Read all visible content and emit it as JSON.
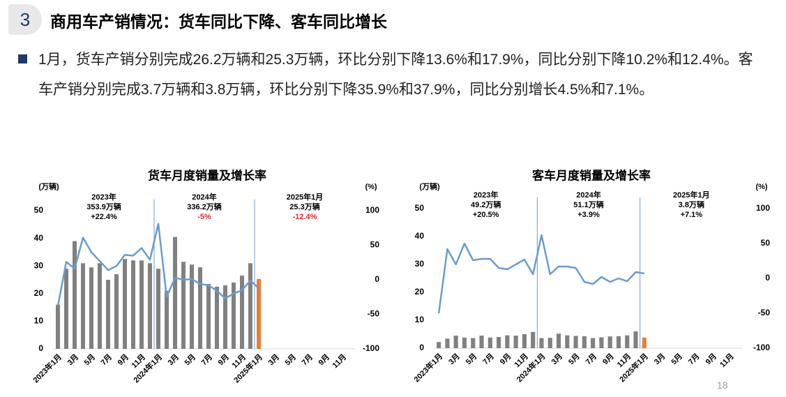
{
  "header": {
    "number": "3",
    "title": "商用车产销情况：货车同比下降、客车同比增长"
  },
  "bullet": "1月，货车产销分别完成26.2万辆和25.3万辆，环比分别下降13.6%和17.9%，同比分别下降10.2%和12.4%。客车产销分别完成3.7万辆和3.8万辆，环比分别下降35.9%和37.9%，同比分别增长4.5%和7.1%。",
  "page_number": "18",
  "chart_data": [
    {
      "type": "bar",
      "title": "货车月度销量及增长率",
      "y_label": "(万辆)",
      "y2_label": "(%)",
      "categories": [
        "2023年1月",
        null,
        "3月",
        null,
        "5月",
        null,
        "7月",
        null,
        "9月",
        null,
        "11月",
        null,
        "2024年1月",
        null,
        "3月",
        null,
        "5月",
        null,
        "7月",
        null,
        "9月",
        null,
        "11月",
        null,
        "2025年1月",
        null,
        "3月",
        null,
        "5月",
        null,
        "7月",
        null,
        "9月",
        null,
        "11月",
        null
      ],
      "ylim": [
        0,
        50
      ],
      "yticks": [
        0,
        10,
        20,
        30,
        40,
        50
      ],
      "y2lim": [
        -100,
        100
      ],
      "y2ticks": [
        -100,
        -50,
        0,
        50,
        100
      ],
      "series": [
        {
          "type": "bar",
          "color": "#808080",
          "highlight_color": "#ed7d31",
          "highlight_index": 24,
          "values": [
            16,
            29,
            39,
            31,
            29.5,
            31,
            25,
            27,
            32.5,
            32,
            32,
            31,
            29,
            21,
            40.5,
            31.5,
            30.5,
            29.5,
            23.5,
            22.5,
            23,
            24,
            26.5,
            31,
            25.3,
            null,
            null,
            null,
            null,
            null,
            null,
            null,
            null,
            null,
            null,
            null
          ]
        },
        {
          "type": "line",
          "axis": "y2",
          "color": "#6a9ccc",
          "values": [
            -38,
            26,
            16,
            61,
            40,
            27,
            14,
            20,
            36,
            35,
            46,
            29,
            81,
            -25,
            3,
            0,
            1,
            -6,
            -8,
            -16,
            -27,
            -20,
            -15,
            -1,
            -12.4,
            null,
            null,
            null,
            null,
            null,
            null,
            null,
            null,
            null,
            null,
            null
          ]
        }
      ],
      "annotations": [
        {
          "year": "2023年",
          "volume": "353.9万辆",
          "growth": "+22.4%",
          "growth_color": "#000000"
        },
        {
          "year": "2024年",
          "volume": "336.2万辆",
          "growth": "-5%",
          "growth_color": "#e0242b"
        },
        {
          "year": "2025年1月",
          "volume": "25.3万辆",
          "growth": "-12.4%",
          "growth_color": "#e0242b"
        }
      ]
    },
    {
      "type": "bar",
      "title": "客车月度销量及增长率",
      "y_label": "(万辆)",
      "y2_label": "(%)",
      "categories": [
        "2023年1月",
        null,
        "3月",
        null,
        "5月",
        null,
        "7月",
        null,
        "9月",
        null,
        "11月",
        null,
        "2024年1月",
        null,
        "3月",
        null,
        "5月",
        null,
        "7月",
        null,
        "9月",
        null,
        "11月",
        null,
        "2025年1月",
        null,
        "3月",
        null,
        "5月",
        null,
        "7月",
        null,
        "9月",
        null,
        "11月",
        null
      ],
      "ylim": [
        0,
        50
      ],
      "yticks": [
        0,
        10,
        20,
        30,
        40,
        50
      ],
      "y2lim": [
        -100,
        100
      ],
      "y2ticks": [
        -100,
        -50,
        0,
        50,
        100
      ],
      "series": [
        {
          "type": "bar",
          "color": "#808080",
          "highlight_color": "#ed7d31",
          "highlight_index": 24,
          "values": [
            2.2,
            3.4,
            4.5,
            3.8,
            3.6,
            4.5,
            3.8,
            4.0,
            4.6,
            4.5,
            5.0,
            5.8,
            3.6,
            3.7,
            5.2,
            4.6,
            4.4,
            4.3,
            3.6,
            3.9,
            4.2,
            4.3,
            4.6,
            6.0,
            3.8,
            null,
            null,
            null,
            null,
            null,
            null,
            null,
            null,
            null,
            null,
            null
          ]
        },
        {
          "type": "line",
          "axis": "y2",
          "color": "#6a9ccc",
          "values": [
            -50,
            42,
            20,
            50,
            26,
            28,
            28,
            15,
            13,
            20,
            27,
            6,
            62,
            6,
            17,
            17,
            15,
            -5,
            -8,
            2,
            -5,
            0,
            -4,
            9,
            7.1,
            null,
            null,
            null,
            null,
            null,
            null,
            null,
            null,
            null,
            null,
            null
          ]
        }
      ],
      "annotations": [
        {
          "year": "2023年",
          "volume": "49.2万辆",
          "growth": "+20.5%",
          "growth_color": "#000000"
        },
        {
          "year": "2024年",
          "volume": "51.1万辆",
          "growth": "+3.9%",
          "growth_color": "#000000"
        },
        {
          "year": "2025年1月",
          "volume": "3.8万辆",
          "growth": "+7.1%",
          "growth_color": "#000000"
        }
      ]
    }
  ]
}
